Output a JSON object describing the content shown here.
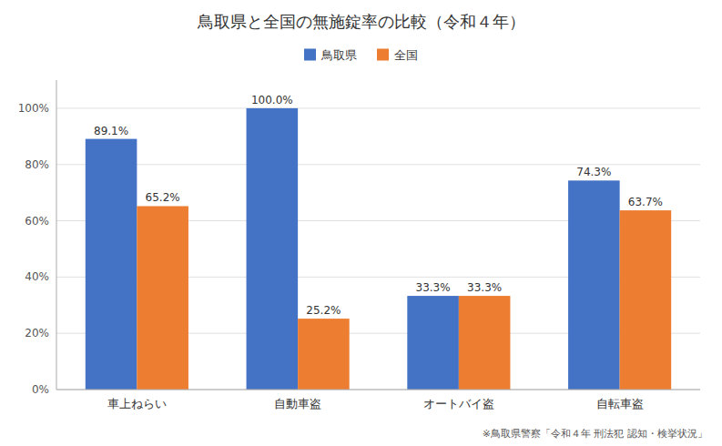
{
  "chart_data": {
    "type": "bar",
    "title": "鳥取県と全国の無施錠率の比較（令和４年）",
    "categories": [
      "車上ねらい",
      "自動車盗",
      "オートバイ盗",
      "自転車盗"
    ],
    "series": [
      {
        "name": "鳥取県",
        "color": "#4472C4",
        "values": [
          89.1,
          100.0,
          33.3,
          74.3
        ],
        "value_labels": [
          "89.1%",
          "100.0%",
          "33.3%",
          "74.3%"
        ]
      },
      {
        "name": "全国",
        "color": "#ED7D31",
        "values": [
          65.2,
          25.2,
          33.3,
          63.7
        ],
        "value_labels": [
          "65.2%",
          "25.2%",
          "33.3%",
          "63.7%"
        ]
      }
    ],
    "ylim": [
      0,
      110
    ],
    "yticks": [
      {
        "value": 0,
        "label": "0%"
      },
      {
        "value": 20,
        "label": "20%"
      },
      {
        "value": 40,
        "label": "40%"
      },
      {
        "value": 60,
        "label": "60%"
      },
      {
        "value": 80,
        "label": "80%"
      },
      {
        "value": 100,
        "label": "100%"
      }
    ],
    "grid": true,
    "legend": "top",
    "data_labels": true,
    "annotations": [
      "※鳥取県警察「令和４年 刑法犯 認知・検挙状況」"
    ]
  }
}
